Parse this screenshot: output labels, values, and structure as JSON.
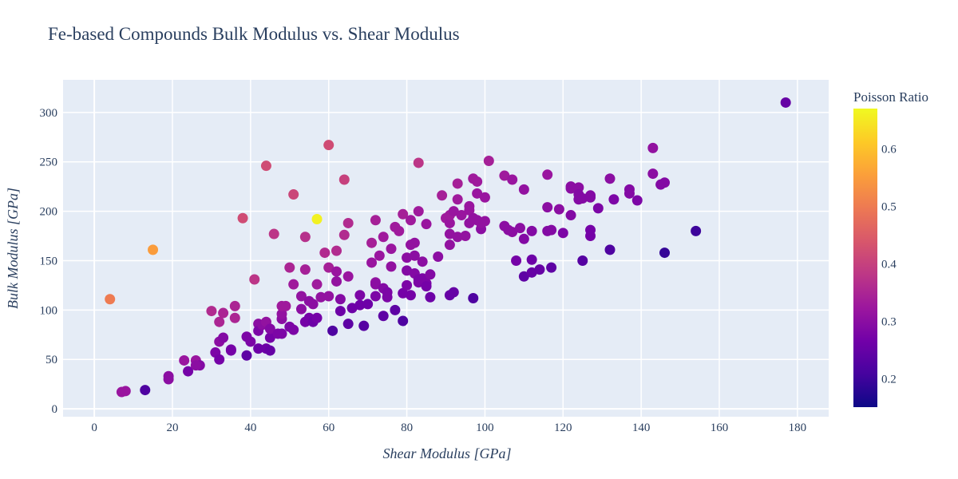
{
  "chart_data": {
    "type": "scatter",
    "title": "Fe-based Compounds Bulk Modulus vs. Shear Modulus",
    "xlabel": "Shear Modulus [GPa]",
    "ylabel": "Bulk Modulus [GPa]",
    "xlim": [
      -8,
      188
    ],
    "ylim": [
      -8,
      333
    ],
    "xticks": [
      0,
      20,
      40,
      60,
      80,
      100,
      120,
      140,
      160,
      180
    ],
    "yticks": [
      0,
      50,
      100,
      150,
      200,
      250,
      300
    ],
    "grid": true,
    "colorbar": {
      "title": "Poisson Ratio",
      "colorscale": "plasma",
      "range": [
        0.151,
        0.67
      ],
      "ticks": [
        0.2,
        0.3,
        0.4,
        0.5,
        0.6
      ],
      "tick_labels": [
        "0.2",
        "0.3",
        "0.4",
        "0.5",
        "0.6"
      ],
      "position": "right"
    },
    "colors": {
      "plot_bg": "#e5ecf6",
      "grid": "#ffffff",
      "text": "#2a3f5f",
      "plasma": [
        "#0d0887",
        "#46039f",
        "#7201a8",
        "#9c179e",
        "#bd3786",
        "#d8576b",
        "#ed7953",
        "#fb9f3a",
        "#fdca26",
        "#f0f921"
      ]
    },
    "points": [
      [
        7,
        17,
        0.32
      ],
      [
        8,
        18,
        0.32
      ],
      [
        13,
        19,
        0.22
      ],
      [
        19,
        33,
        0.3
      ],
      [
        19,
        30,
        0.3
      ],
      [
        4,
        111,
        0.5
      ],
      [
        15,
        161,
        0.55
      ],
      [
        23,
        49,
        0.32
      ],
      [
        24,
        38,
        0.27
      ],
      [
        26,
        49,
        0.32
      ],
      [
        27,
        44,
        0.29
      ],
      [
        26,
        44,
        0.3
      ],
      [
        30,
        99,
        0.36
      ],
      [
        31,
        57,
        0.28
      ],
      [
        32,
        50,
        0.27
      ],
      [
        32,
        68,
        0.3
      ],
      [
        33,
        72,
        0.29
      ],
      [
        32,
        88,
        0.35
      ],
      [
        33,
        97,
        0.35
      ],
      [
        35,
        60,
        0.27
      ],
      [
        35,
        59,
        0.27
      ],
      [
        36,
        104,
        0.35
      ],
      [
        36,
        92,
        0.35
      ],
      [
        38,
        193,
        0.42
      ],
      [
        39,
        54,
        0.24
      ],
      [
        39,
        73,
        0.28
      ],
      [
        40,
        68,
        0.28
      ],
      [
        41,
        131,
        0.38
      ],
      [
        42,
        86,
        0.3
      ],
      [
        42,
        79,
        0.28
      ],
      [
        42,
        61,
        0.26
      ],
      [
        43,
        85,
        0.3
      ],
      [
        44,
        61,
        0.26
      ],
      [
        44,
        88,
        0.31
      ],
      [
        44,
        246,
        0.42
      ],
      [
        45,
        72,
        0.27
      ],
      [
        45,
        59,
        0.25
      ],
      [
        45,
        81,
        0.29
      ],
      [
        46,
        177,
        0.38
      ],
      [
        47,
        76,
        0.28
      ],
      [
        48,
        76,
        0.28
      ],
      [
        48,
        91,
        0.3
      ],
      [
        48,
        96,
        0.31
      ],
      [
        48,
        104,
        0.33
      ],
      [
        49,
        104,
        0.33
      ],
      [
        50,
        143,
        0.35
      ],
      [
        50,
        83,
        0.28
      ],
      [
        51,
        217,
        0.41
      ],
      [
        51,
        126,
        0.33
      ],
      [
        51,
        80,
        0.28
      ],
      [
        53,
        114,
        0.31
      ],
      [
        53,
        101,
        0.3
      ],
      [
        54,
        141,
        0.34
      ],
      [
        54,
        174,
        0.37
      ],
      [
        54,
        88,
        0.27
      ],
      [
        55,
        92,
        0.27
      ],
      [
        55,
        109,
        0.3
      ],
      [
        56,
        106,
        0.3
      ],
      [
        56,
        88,
        0.26
      ],
      [
        57,
        92,
        0.27
      ],
      [
        57,
        192,
        0.66
      ],
      [
        57,
        126,
        0.33
      ],
      [
        58,
        113,
        0.31
      ],
      [
        59,
        158,
        0.36
      ],
      [
        60,
        267,
        0.42
      ],
      [
        60,
        114,
        0.31
      ],
      [
        60,
        143,
        0.34
      ],
      [
        61,
        79,
        0.22
      ],
      [
        62,
        160,
        0.36
      ],
      [
        62,
        139,
        0.32
      ],
      [
        62,
        129,
        0.31
      ],
      [
        63,
        111,
        0.29
      ],
      [
        63,
        99,
        0.26
      ],
      [
        64,
        176,
        0.36
      ],
      [
        64,
        232,
        0.4
      ],
      [
        65,
        188,
        0.36
      ],
      [
        65,
        134,
        0.32
      ],
      [
        65,
        86,
        0.24
      ],
      [
        66,
        102,
        0.26
      ],
      [
        68,
        105,
        0.26
      ],
      [
        68,
        115,
        0.28
      ],
      [
        69,
        84,
        0.23
      ],
      [
        70,
        106,
        0.26
      ],
      [
        71,
        168,
        0.34
      ],
      [
        71,
        148,
        0.32
      ],
      [
        72,
        191,
        0.34
      ],
      [
        72,
        128,
        0.31
      ],
      [
        72,
        126,
        0.3
      ],
      [
        72,
        114,
        0.28
      ],
      [
        73,
        155,
        0.32
      ],
      [
        74,
        94,
        0.24
      ],
      [
        74,
        174,
        0.33
      ],
      [
        74,
        122,
        0.29
      ],
      [
        75,
        118,
        0.28
      ],
      [
        75,
        113,
        0.28
      ],
      [
        76,
        162,
        0.32
      ],
      [
        76,
        144,
        0.31
      ],
      [
        77,
        100,
        0.24
      ],
      [
        77,
        184,
        0.33
      ],
      [
        78,
        180,
        0.33
      ],
      [
        79,
        197,
        0.34
      ],
      [
        79,
        117,
        0.27
      ],
      [
        79,
        89,
        0.22
      ],
      [
        80,
        153,
        0.3
      ],
      [
        80,
        140,
        0.29
      ],
      [
        80,
        125,
        0.28
      ],
      [
        81,
        115,
        0.27
      ],
      [
        81,
        191,
        0.33
      ],
      [
        81,
        166,
        0.31
      ],
      [
        82,
        168,
        0.31
      ],
      [
        82,
        155,
        0.3
      ],
      [
        82,
        137,
        0.29
      ],
      [
        83,
        249,
        0.38
      ],
      [
        83,
        200,
        0.33
      ],
      [
        83,
        128,
        0.28
      ],
      [
        83,
        131,
        0.28
      ],
      [
        84,
        149,
        0.3
      ],
      [
        84,
        132,
        0.28
      ],
      [
        85,
        187,
        0.32
      ],
      [
        85,
        127,
        0.28
      ],
      [
        85,
        124,
        0.27
      ],
      [
        86,
        136,
        0.29
      ],
      [
        86,
        113,
        0.26
      ],
      [
        88,
        154,
        0.3
      ],
      [
        89,
        216,
        0.34
      ],
      [
        90,
        193,
        0.33
      ],
      [
        91,
        188,
        0.32
      ],
      [
        91,
        196,
        0.33
      ],
      [
        91,
        177,
        0.31
      ],
      [
        91,
        166,
        0.31
      ],
      [
        91,
        115,
        0.25
      ],
      [
        92,
        118,
        0.25
      ],
      [
        92,
        200,
        0.32
      ],
      [
        93,
        228,
        0.34
      ],
      [
        93,
        212,
        0.33
      ],
      [
        93,
        174,
        0.31
      ],
      [
        94,
        196,
        0.32
      ],
      [
        95,
        175,
        0.31
      ],
      [
        96,
        205,
        0.32
      ],
      [
        96,
        201,
        0.32
      ],
      [
        96,
        188,
        0.31
      ],
      [
        97,
        233,
        0.33
      ],
      [
        97,
        193,
        0.31
      ],
      [
        97,
        112,
        0.22
      ],
      [
        98,
        230,
        0.33
      ],
      [
        98,
        218,
        0.32
      ],
      [
        98,
        191,
        0.31
      ],
      [
        99,
        182,
        0.3
      ],
      [
        99,
        188,
        0.31
      ],
      [
        100,
        190,
        0.31
      ],
      [
        100,
        214,
        0.32
      ],
      [
        101,
        251,
        0.34
      ],
      [
        105,
        236,
        0.33
      ],
      [
        105,
        185,
        0.3
      ],
      [
        106,
        181,
        0.3
      ],
      [
        107,
        232,
        0.32
      ],
      [
        107,
        179,
        0.3
      ],
      [
        108,
        150,
        0.27
      ],
      [
        109,
        183,
        0.3
      ],
      [
        110,
        172,
        0.29
      ],
      [
        110,
        134,
        0.24
      ],
      [
        110,
        222,
        0.31
      ],
      [
        112,
        180,
        0.29
      ],
      [
        112,
        138,
        0.25
      ],
      [
        112,
        151,
        0.26
      ],
      [
        114,
        141,
        0.25
      ],
      [
        116,
        237,
        0.32
      ],
      [
        116,
        204,
        0.3
      ],
      [
        116,
        180,
        0.29
      ],
      [
        117,
        181,
        0.29
      ],
      [
        117,
        143,
        0.24
      ],
      [
        119,
        202,
        0.3
      ],
      [
        120,
        178,
        0.28
      ],
      [
        122,
        225,
        0.3
      ],
      [
        122,
        223,
        0.3
      ],
      [
        122,
        196,
        0.29
      ],
      [
        124,
        224,
        0.3
      ],
      [
        124,
        212,
        0.29
      ],
      [
        124,
        217,
        0.29
      ],
      [
        125,
        213,
        0.29
      ],
      [
        125,
        150,
        0.23
      ],
      [
        127,
        216,
        0.29
      ],
      [
        127,
        214,
        0.29
      ],
      [
        127,
        181,
        0.27
      ],
      [
        127,
        175,
        0.27
      ],
      [
        129,
        203,
        0.28
      ],
      [
        132,
        233,
        0.3
      ],
      [
        132,
        161,
        0.22
      ],
      [
        133,
        212,
        0.28
      ],
      [
        137,
        222,
        0.29
      ],
      [
        137,
        218,
        0.29
      ],
      [
        139,
        211,
        0.28
      ],
      [
        143,
        264,
        0.31
      ],
      [
        143,
        238,
        0.3
      ],
      [
        145,
        227,
        0.29
      ],
      [
        146,
        229,
        0.29
      ],
      [
        146,
        158,
        0.19
      ],
      [
        154,
        180,
        0.2
      ],
      [
        177,
        310,
        0.25
      ]
    ]
  }
}
